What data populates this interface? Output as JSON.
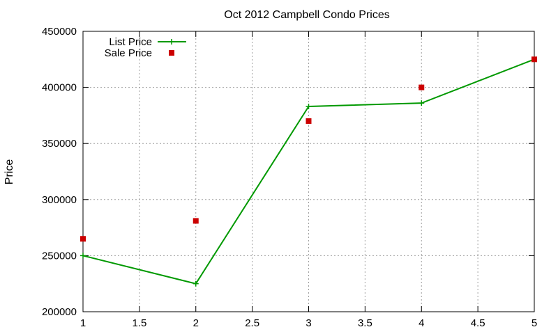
{
  "chart_data": {
    "type": "line",
    "title": "Oct 2012 Campbell Condo Prices",
    "xlabel": "",
    "ylabel": "Price",
    "xlim": [
      1,
      5
    ],
    "ylim": [
      200000,
      450000
    ],
    "xticks": [
      "1",
      "1.5",
      "2",
      "2.5",
      "3",
      "3.5",
      "4",
      "4.5",
      "5"
    ],
    "xtick_values": [
      1,
      1.5,
      2,
      2.5,
      3,
      3.5,
      4,
      4.5,
      5
    ],
    "yticks": [
      "200000",
      "250000",
      "300000",
      "350000",
      "400000",
      "450000"
    ],
    "ytick_values": [
      200000,
      250000,
      300000,
      350000,
      400000,
      450000
    ],
    "grid": true,
    "legend_position": "top-left",
    "series": [
      {
        "name": "List Price",
        "style": "linespoints",
        "color": "#009900",
        "x": [
          1,
          2,
          3,
          4,
          5
        ],
        "y": [
          250000,
          225000,
          383000,
          386000,
          425000
        ]
      },
      {
        "name": "Sale Price",
        "style": "points",
        "color": "#cc0000",
        "x": [
          1,
          2,
          3,
          4,
          5
        ],
        "y": [
          265000,
          281000,
          370000,
          400000,
          425000
        ]
      }
    ]
  }
}
